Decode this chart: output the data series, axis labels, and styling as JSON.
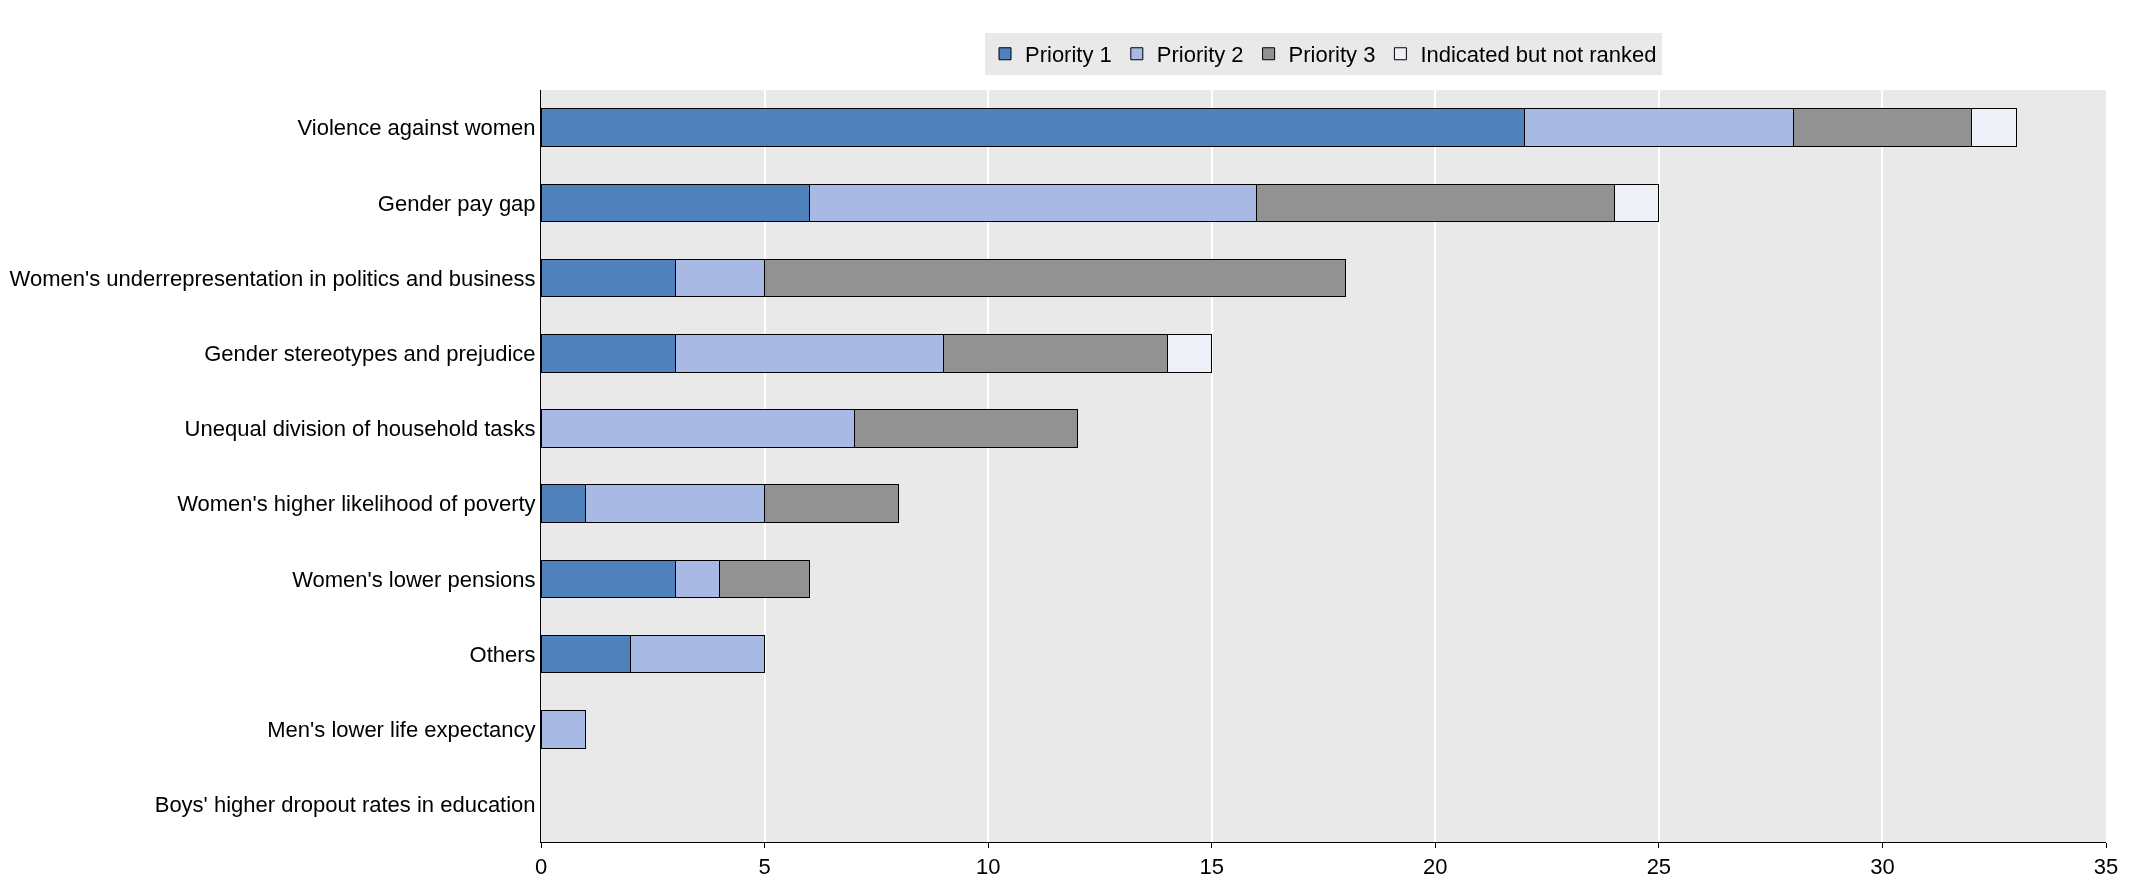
{
  "chart_data": {
    "type": "bar",
    "orientation": "horizontal",
    "stacked": true,
    "categories": [
      "Violence against women",
      "Gender pay gap",
      "Women's underrepresentation in politics and business",
      "Gender stereotypes and prejudice",
      "Unequal division of household tasks",
      "Women's higher likelihood of poverty",
      "Women's lower pensions",
      "Others",
      "Men's lower life expectancy",
      "Boys' higher dropout rates in education"
    ],
    "series": [
      {
        "name": "Priority 1",
        "color": "#4f81bd",
        "values": [
          22,
          6,
          3,
          3,
          0,
          1,
          3,
          2,
          0,
          0
        ]
      },
      {
        "name": "Priority 2",
        "color": "#a8b9e3",
        "values": [
          6,
          10,
          2,
          6,
          7,
          4,
          1,
          3,
          1,
          0
        ]
      },
      {
        "name": "Priority 3",
        "color": "#929292",
        "values": [
          4,
          8,
          13,
          5,
          5,
          3,
          2,
          0,
          0,
          0
        ]
      },
      {
        "name": "Indicated but not ranked",
        "color": "#eef0f8",
        "values": [
          1,
          1,
          0,
          1,
          0,
          0,
          0,
          0,
          0,
          0
        ]
      }
    ],
    "xlim": [
      0,
      35
    ],
    "xticks": [
      0,
      5,
      10,
      15,
      20,
      25,
      30,
      35
    ],
    "grid": "x",
    "legend": "top"
  }
}
